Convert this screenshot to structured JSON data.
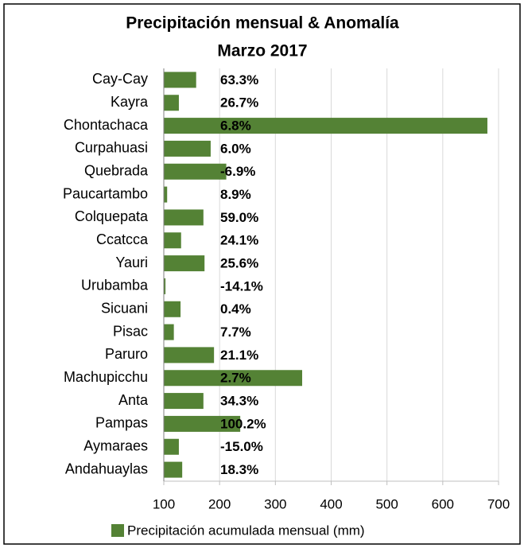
{
  "chart_data": {
    "type": "barh",
    "title": "Precipitación mensual & Anomalía",
    "subtitle": "Marzo 2017",
    "categories": [
      "Cay-Cay",
      "Kayra",
      "Chontachaca",
      "Curpahuasi",
      "Quebrada",
      "Paucartambo",
      "Colquepata",
      "Ccatcca",
      "Yauri",
      "Urubamba",
      "Sicuani",
      "Pisac",
      "Paruro",
      "Machupicchu",
      "Anta",
      "Pampas",
      "Aymaraes",
      "Andahuaylas"
    ],
    "series": [
      {
        "name": "Precipitación acumulada mensual (mm)",
        "color": "#548235",
        "values": [
          158,
          127,
          680,
          184,
          212,
          106,
          171,
          131,
          173,
          103,
          130,
          118,
          190,
          348,
          171,
          237,
          127,
          133
        ]
      }
    ],
    "annotations": [
      "63.3%",
      "26.7%",
      "6.8%",
      "6.0%",
      "-6.9%",
      "8.9%",
      "59.0%",
      "24.1%",
      "25.6%",
      "-14.1%",
      "0.4%",
      "7.7%",
      "21.1%",
      "2.7%",
      "34.3%",
      "100.2%",
      "-15.0%",
      "18.3%"
    ],
    "xlim": [
      100,
      700
    ],
    "xticks": [
      100,
      200,
      300,
      400,
      500,
      600,
      700
    ],
    "grid": true,
    "legend": "bottom"
  }
}
